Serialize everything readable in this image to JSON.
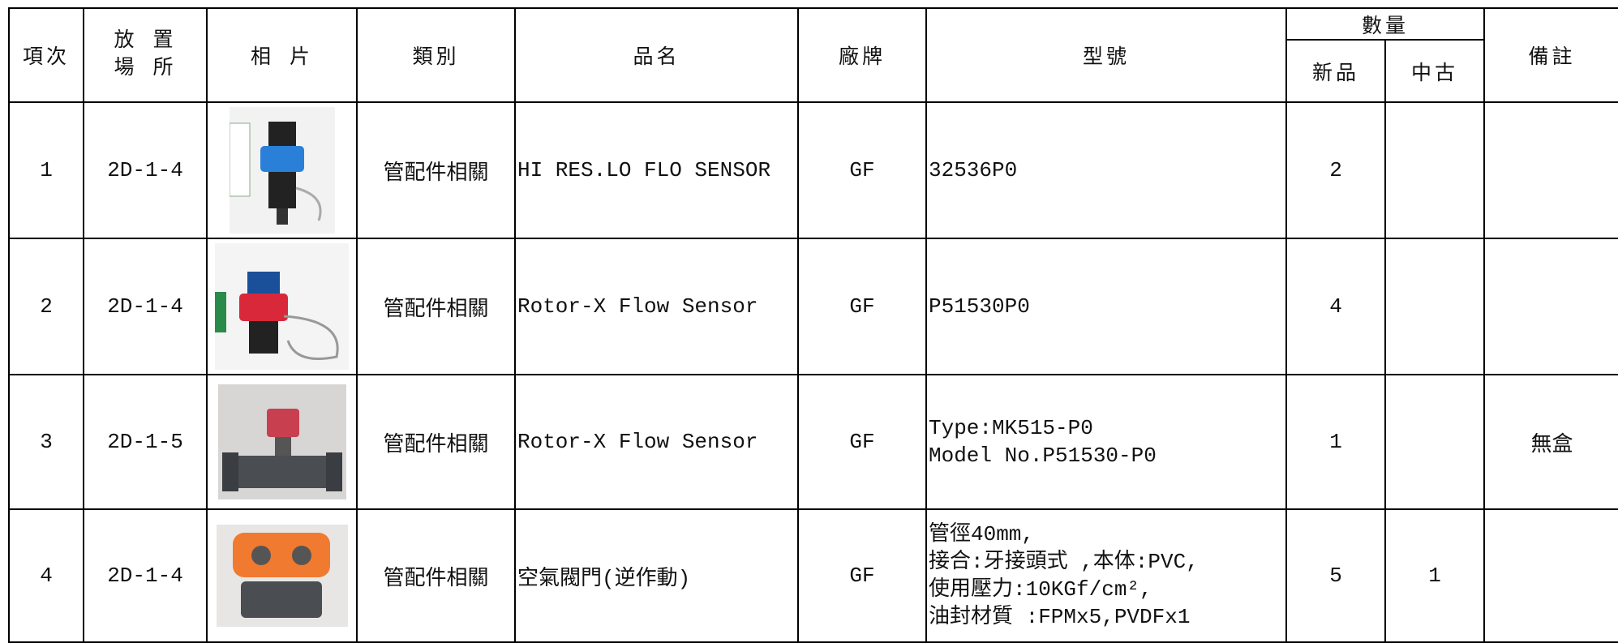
{
  "header": {
    "no": "項次",
    "location": [
      "放 置",
      "場 所"
    ],
    "photo": "相 片",
    "category": "類別",
    "name": "品名",
    "brand": "廠牌",
    "model": "型號",
    "quantity": "數量",
    "new": "新品",
    "used": "中古",
    "note": "備註"
  },
  "rows": [
    {
      "no": 1,
      "location": "2D-1-4",
      "category": "管配件相關",
      "name": "HI RES.LO FLO SENSOR",
      "brand": "GF",
      "model": [
        "32536P0"
      ],
      "new": 2
    },
    {
      "no": 2,
      "location": "2D-1-4",
      "category": "管配件相關",
      "name": "Rotor-X Flow Sensor",
      "brand": "GF",
      "model": [
        "P51530P0"
      ],
      "new": 4
    },
    {
      "no": 3,
      "location": "2D-1-5",
      "category": "管配件相關",
      "name": "Rotor-X Flow Sensor",
      "brand": "GF",
      "model": [
        "Type:MK515-P0",
        "Model No.P51530-P0"
      ],
      "new": 1,
      "note": "無盒"
    },
    {
      "no": 4,
      "location": "2D-1-4",
      "category": "管配件相關",
      "name": "空氣閥門(逆作動)",
      "brand": "GF",
      "model": [
        "管徑40mm,",
        "接合:牙接頭式 ,本体:PVC,",
        "使用壓力:10KGf/cm²,",
        "油封材質 :FPMx5,PVDFx1"
      ],
      "new": 5,
      "used": 1
    }
  ]
}
